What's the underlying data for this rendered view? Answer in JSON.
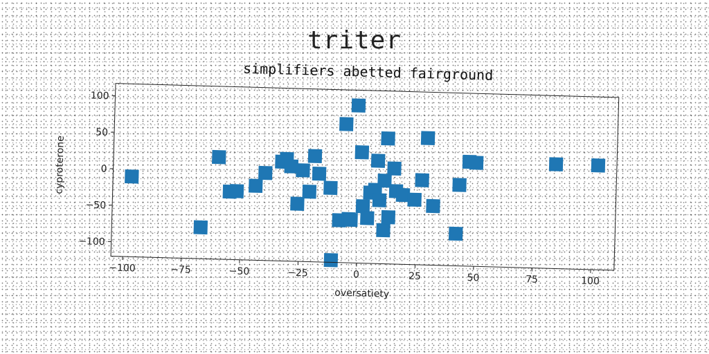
{
  "page_title": "triter",
  "chart_data": {
    "type": "scatter",
    "title": "simplifiers abetted fairground",
    "xlabel": "oversatiety",
    "ylabel": "cyproterone",
    "xlim": [
      -105,
      110
    ],
    "ylim": [
      -120,
      117
    ],
    "xticks": [
      -100,
      -75,
      -50,
      -25,
      0,
      25,
      50,
      75,
      100
    ],
    "yticks": [
      -100,
      -50,
      0,
      50,
      100
    ],
    "grid": false,
    "marker": "square",
    "color": "#1f77b4",
    "x": [
      -97,
      -67,
      -60,
      -55,
      -52,
      -44,
      -40,
      -33,
      -31,
      -29,
      -26,
      -24,
      -21,
      -19,
      -17,
      -12,
      -11,
      -8,
      -6,
      -4,
      -3,
      -1,
      1,
      2,
      4,
      5,
      7,
      8,
      9,
      11,
      11,
      12,
      13,
      15,
      16,
      19,
      24,
      27,
      29,
      32,
      42,
      43,
      47,
      50,
      84,
      102
    ],
    "y": [
      -10,
      -77,
      20,
      -27,
      -26,
      -18,
      0,
      16,
      20,
      10,
      -41,
      5,
      -24,
      25,
      1,
      -18,
      -117,
      -62,
      70,
      -60,
      -61,
      96,
      32,
      -42,
      -58,
      -23,
      -19,
      21,
      -33,
      -74,
      -6,
      52,
      -56,
      11,
      -20,
      -25,
      -31,
      -4,
      54,
      -39,
      -76,
      -9,
      23,
      22,
      23,
      23
    ]
  }
}
